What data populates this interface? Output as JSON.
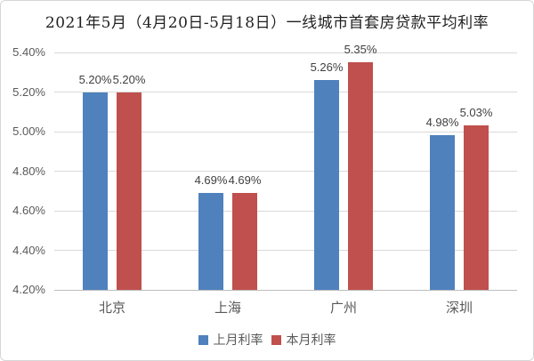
{
  "title": "2021年5月（4月20日-5月18日）一线城市首套房贷款平均利率",
  "chart_data": {
    "type": "bar",
    "categories": [
      "北京",
      "上海",
      "广州",
      "深圳"
    ],
    "series": [
      {
        "name": "上月利率",
        "color": "#4f81bd",
        "values": [
          5.2,
          4.69,
          5.26,
          4.98
        ]
      },
      {
        "name": "本月利率",
        "color": "#c0504d",
        "values": [
          5.2,
          4.69,
          5.35,
          5.03
        ]
      }
    ],
    "value_labels": [
      [
        "5.20%",
        "4.69%",
        "5.26%",
        "4.98%"
      ],
      [
        "5.20%",
        "4.69%",
        "5.35%",
        "5.03%"
      ]
    ],
    "title": "2021年5月（4月20日-5月18日）一线城市首套房贷款平均利率",
    "xlabel": "",
    "ylabel": "",
    "ylim": [
      4.2,
      5.4
    ],
    "ytick_step": 0.2,
    "ytick_labels": [
      "5.40%",
      "5.20%",
      "5.00%",
      "4.80%",
      "4.60%",
      "4.40%",
      "4.20%"
    ],
    "grid": true,
    "legend_position": "bottom"
  },
  "colors": {
    "prev_month_bar": "#4f81bd",
    "current_month_bar": "#c0504d",
    "gridline": "#d9d9d9",
    "axis_line": "#bdbdbd",
    "tick_text": "#595959",
    "value_text": "#404040",
    "title_text": "#1f1f1f",
    "frame_border": "#d6d6d6"
  }
}
